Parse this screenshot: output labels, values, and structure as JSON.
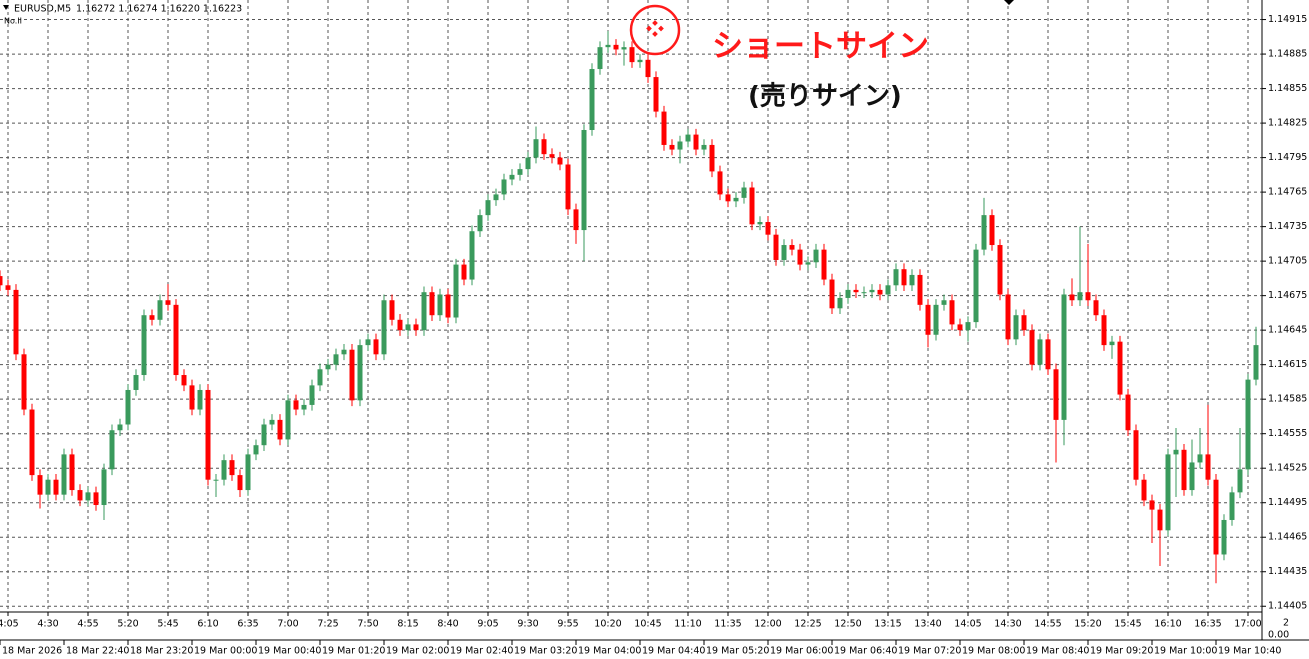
{
  "chart_data": {
    "type": "candlestick",
    "title": "EURUSD,M5",
    "quote": "1.16272 1.16274 1.16220 1.16223",
    "subtitle": "No.II",
    "annotations": [
      "ショートサイン",
      "(売りサイン)"
    ],
    "up_color": "#3a9a5c",
    "down_color": "#ff0000",
    "grid": true,
    "ylim": [
      1.144,
      1.14932
    ],
    "yticks": [
      1.14915,
      1.14885,
      1.14855,
      1.14825,
      1.14795,
      1.14765,
      1.14735,
      1.14705,
      1.14675,
      1.14645,
      1.14615,
      1.14585,
      1.14555,
      1.14525,
      1.14495,
      1.14465,
      1.14435,
      1.14405
    ],
    "categories": [
      null,
      "4:05",
      null,
      null,
      null,
      null,
      "4:30",
      null,
      null,
      null,
      null,
      "4:55",
      null,
      null,
      null,
      null,
      "5:20",
      null,
      null,
      null,
      null,
      "5:45",
      null,
      null,
      null,
      null,
      "6:10",
      null,
      null,
      null,
      null,
      "6:35",
      null,
      null,
      null,
      null,
      "7:00",
      null,
      null,
      null,
      null,
      "7:25",
      null,
      null,
      null,
      null,
      "7:50",
      null,
      null,
      null,
      null,
      "8:15",
      null,
      null,
      null,
      null,
      "8:40",
      null,
      null,
      null,
      null,
      "9:05",
      null,
      null,
      null,
      null,
      "9:30",
      null,
      null,
      null,
      null,
      "9:55",
      null,
      null,
      null,
      null,
      "10:20",
      null,
      null,
      null,
      null,
      "10:45",
      null,
      null,
      null,
      null,
      "11:10",
      null,
      null,
      null,
      null,
      "11:35",
      null,
      null,
      null,
      null,
      "12:00",
      null,
      null,
      null,
      null,
      "12:25",
      null,
      null,
      null,
      null,
      "12:50",
      null,
      null,
      null,
      null,
      "13:15",
      null,
      null,
      null,
      null,
      "13:40",
      null,
      null,
      null,
      null,
      "14:05",
      null,
      null,
      null,
      null,
      "14:30",
      null,
      null,
      null,
      null,
      "14:55",
      null,
      null,
      null,
      null,
      "15:20",
      null,
      null,
      null,
      null,
      "15:45",
      null,
      null,
      null,
      null,
      "16:10",
      null,
      null,
      null,
      null,
      "16:35",
      null,
      null,
      null,
      null,
      "17:00",
      null
    ],
    "open": [
      1.14692,
      1.14684,
      1.1468,
      1.14624,
      1.14576,
      1.14519,
      1.14502,
      1.14515,
      1.14502,
      1.14537,
      1.14506,
      1.14497,
      1.14504,
      1.14493,
      1.14524,
      1.14558,
      1.14563,
      1.14593,
      1.14606,
      1.14658,
      1.14654,
      1.14671,
      1.14667,
      1.14606,
      1.14597,
      1.14576,
      1.14593,
      1.14515,
      1.14515,
      1.14532,
      1.14519,
      1.14506,
      1.14537,
      1.14545,
      1.14563,
      1.14567,
      1.1455,
      1.14584,
      1.14576,
      1.1458,
      1.14597,
      1.14611,
      1.14615,
      1.14624,
      1.14628,
      1.14584,
      1.14632,
      1.14637,
      1.14624,
      1.14671,
      1.14654,
      1.14645,
      1.1465,
      1.14645,
      1.14678,
      1.14658,
      1.14676,
      1.14656,
      1.14702,
      1.14689,
      1.14731,
      1.14745,
      1.14758,
      1.14763,
      1.14776,
      1.1478,
      1.14785,
      1.14795,
      1.14811,
      1.14798,
      1.14795,
      1.14789,
      1.1475,
      1.14732,
      1.14819,
      1.14872,
      1.14891,
      1.14893,
      1.14889,
      1.14891,
      1.14878,
      1.1488,
      1.14865,
      1.14835,
      1.14806,
      1.14802,
      1.14809,
      1.14815,
      1.14802,
      1.14806,
      1.14783,
      1.14763,
      1.14757,
      1.1476,
      1.14769,
      1.14737,
      1.14739,
      1.14728,
      1.14706,
      1.14719,
      1.14715,
      1.14702,
      1.14704,
      1.14715,
      1.14689,
      1.14664,
      1.14673,
      1.1468,
      1.14678,
      1.14678,
      1.1468,
      1.14676,
      1.14684,
      1.14698,
      1.14684,
      1.14693,
      1.14667,
      1.14641,
      1.14667,
      1.14671,
      1.1465,
      1.14645,
      1.14652,
      1.14715,
      1.14745,
      1.14719,
      1.14676,
      1.14637,
      1.14658,
      1.14645,
      1.14615,
      1.14637,
      1.14611,
      1.14567,
      1.14676,
      1.14671,
      1.14678,
      1.14671,
      1.14658,
      1.14632,
      1.14635,
      1.14589,
      1.14558,
      1.14515,
      1.14497,
      1.14489,
      1.14471,
      1.14537,
      1.14541,
      1.14506,
      1.1453,
      1.14537,
      1.14515,
      1.1445,
      1.1448,
      1.14504,
      1.14524,
      1.14602
    ],
    "high": [
      1.14697,
      1.14689,
      1.14685,
      1.14629,
      1.14581,
      1.14524,
      1.1452,
      1.1452,
      1.14542,
      1.14542,
      1.14511,
      1.14509,
      1.14509,
      1.14529,
      1.14563,
      1.14568,
      1.14598,
      1.14611,
      1.14663,
      1.14663,
      1.14676,
      1.14685,
      1.14672,
      1.14611,
      1.14602,
      1.14598,
      1.14598,
      1.1452,
      1.14537,
      1.14537,
      1.14524,
      1.14542,
      1.1455,
      1.14568,
      1.14572,
      1.14572,
      1.14589,
      1.14589,
      1.14585,
      1.14602,
      1.14616,
      1.1462,
      1.14629,
      1.14633,
      1.14633,
      1.14637,
      1.14642,
      1.14642,
      1.14676,
      1.14676,
      1.14659,
      1.14655,
      1.14655,
      1.14683,
      1.14683,
      1.14681,
      1.14681,
      1.14707,
      1.14707,
      1.14736,
      1.1475,
      1.14763,
      1.14768,
      1.14781,
      1.14785,
      1.1479,
      1.148,
      1.14822,
      1.14816,
      1.14803,
      1.148,
      1.14794,
      1.14755,
      1.14824,
      1.14877,
      1.14896,
      1.14905,
      1.14898,
      1.14896,
      1.14896,
      1.14885,
      1.14885,
      1.1487,
      1.1484,
      1.14811,
      1.14814,
      1.1482,
      1.1482,
      1.14811,
      1.14811,
      1.14788,
      1.14768,
      1.14765,
      1.14774,
      1.14774,
      1.14744,
      1.14744,
      1.14733,
      1.14724,
      1.14724,
      1.1472,
      1.14709,
      1.1472,
      1.1472,
      1.14694,
      1.14678,
      1.14685,
      1.14685,
      1.14683,
      1.14685,
      1.14685,
      1.14689,
      1.14703,
      1.14703,
      1.14698,
      1.14698,
      1.14672,
      1.14672,
      1.14676,
      1.14676,
      1.14655,
      1.14657,
      1.1472,
      1.1476,
      1.1475,
      1.14724,
      1.14681,
      1.14663,
      1.14663,
      1.1465,
      1.14642,
      1.14642,
      1.14616,
      1.14681,
      1.1469,
      1.14735,
      1.1472,
      1.14676,
      1.14663,
      1.1464,
      1.1464,
      1.14594,
      1.14563,
      1.1452,
      1.14502,
      1.14494,
      1.14542,
      1.1456,
      1.14546,
      1.1455,
      1.1456,
      1.1458,
      1.1452,
      1.14485,
      1.14509,
      1.1456,
      1.14607,
      1.14648
    ],
    "low": [
      1.14679,
      1.14675,
      1.14619,
      1.14571,
      1.14514,
      1.1449,
      1.14497,
      1.14497,
      1.14497,
      1.14501,
      1.14492,
      1.14492,
      1.14488,
      1.1448,
      1.14519,
      1.14553,
      1.14558,
      1.14588,
      1.14601,
      1.14649,
      1.14649,
      1.14662,
      1.14601,
      1.14592,
      1.14571,
      1.14571,
      1.1451,
      1.145,
      1.1451,
      1.14514,
      1.145,
      1.14501,
      1.14532,
      1.1454,
      1.14558,
      1.14545,
      1.14545,
      1.14571,
      1.14571,
      1.14575,
      1.14592,
      1.14606,
      1.1461,
      1.14619,
      1.14579,
      1.14579,
      1.14627,
      1.14619,
      1.14619,
      1.14649,
      1.1464,
      1.1464,
      1.1464,
      1.1464,
      1.14653,
      1.14653,
      1.14651,
      1.14651,
      1.14684,
      1.14684,
      1.14726,
      1.1474,
      1.14753,
      1.14758,
      1.14771,
      1.14775,
      1.1478,
      1.1479,
      1.14793,
      1.1479,
      1.14784,
      1.14745,
      1.1472,
      1.14705,
      1.14814,
      1.14867,
      1.14886,
      1.14884,
      1.14875,
      1.14873,
      1.14873,
      1.1486,
      1.1483,
      1.14801,
      1.14797,
      1.1479,
      1.14804,
      1.14797,
      1.14797,
      1.14778,
      1.14758,
      1.14752,
      1.14752,
      1.14755,
      1.14732,
      1.14732,
      1.14723,
      1.14701,
      1.14701,
      1.1471,
      1.14697,
      1.14697,
      1.14699,
      1.14684,
      1.14659,
      1.14659,
      1.14668,
      1.14673,
      1.14673,
      1.14673,
      1.14671,
      1.14671,
      1.14679,
      1.14679,
      1.14679,
      1.14662,
      1.1463,
      1.14636,
      1.14662,
      1.14645,
      1.1464,
      1.14635,
      1.14647,
      1.1471,
      1.14714,
      1.14671,
      1.14632,
      1.14632,
      1.1464,
      1.1461,
      1.1461,
      1.14606,
      1.1453,
      1.14545,
      1.14666,
      1.14666,
      1.14666,
      1.14653,
      1.14627,
      1.1462,
      1.14584,
      1.14553,
      1.1451,
      1.14492,
      1.1446,
      1.1444,
      1.14466,
      1.145,
      1.14501,
      1.14501,
      1.14525,
      1.1451,
      1.14425,
      1.14445,
      1.14475,
      1.14499,
      1.14519,
      1.14597
    ],
    "close": [
      1.14684,
      1.1468,
      1.14624,
      1.14576,
      1.14519,
      1.14502,
      1.14515,
      1.14502,
      1.14537,
      1.14506,
      1.14497,
      1.14504,
      1.14493,
      1.14524,
      1.14558,
      1.14563,
      1.14593,
      1.14606,
      1.14658,
      1.14654,
      1.14671,
      1.14667,
      1.14606,
      1.14597,
      1.14576,
      1.14593,
      1.14515,
      1.14515,
      1.14532,
      1.14519,
      1.14506,
      1.14537,
      1.14545,
      1.14563,
      1.14567,
      1.1455,
      1.14584,
      1.14576,
      1.1458,
      1.14597,
      1.14611,
      1.14615,
      1.14624,
      1.14628,
      1.14584,
      1.14632,
      1.14637,
      1.14624,
      1.14671,
      1.14654,
      1.14645,
      1.1465,
      1.14645,
      1.14678,
      1.14658,
      1.14676,
      1.14656,
      1.14702,
      1.14689,
      1.14731,
      1.14745,
      1.14758,
      1.14763,
      1.14776,
      1.1478,
      1.14785,
      1.14795,
      1.14811,
      1.14798,
      1.14795,
      1.14789,
      1.1475,
      1.14732,
      1.14819,
      1.14872,
      1.14891,
      1.14893,
      1.14889,
      1.14891,
      1.14878,
      1.1488,
      1.14865,
      1.14835,
      1.14806,
      1.14802,
      1.14809,
      1.14815,
      1.14802,
      1.14806,
      1.14783,
      1.14763,
      1.14757,
      1.1476,
      1.14769,
      1.14737,
      1.14739,
      1.14728,
      1.14706,
      1.14719,
      1.14715,
      1.14702,
      1.14704,
      1.14715,
      1.14689,
      1.14664,
      1.14673,
      1.1468,
      1.14678,
      1.14678,
      1.1468,
      1.14676,
      1.14684,
      1.14698,
      1.14684,
      1.14693,
      1.14667,
      1.14641,
      1.14667,
      1.14671,
      1.1465,
      1.14645,
      1.14652,
      1.14715,
      1.14745,
      1.14719,
      1.14676,
      1.14637,
      1.14658,
      1.14645,
      1.14615,
      1.14637,
      1.14611,
      1.14567,
      1.14676,
      1.14671,
      1.14678,
      1.14671,
      1.14658,
      1.14632,
      1.14635,
      1.14589,
      1.14558,
      1.14515,
      1.14497,
      1.14489,
      1.14471,
      1.14537,
      1.14541,
      1.14506,
      1.1453,
      1.14537,
      1.14515,
      1.1445,
      1.1448,
      1.14504,
      1.14524,
      1.14602,
      1.14632
    ],
    "date_labels": [
      "18 Mar 2026",
      "18 Mar 22:40",
      "18 Mar 23:20",
      "19 Mar 00:00",
      "19 Mar 00:40",
      "19 Mar 01:20",
      "19 Mar 02:00",
      "19 Mar 02:40",
      "19 Mar 03:20",
      "19 Mar 04:00",
      "19 Mar 04:40",
      "19 Mar 05:20",
      "19 Mar 06:00",
      "19 Mar 06:40",
      "19 Mar 07:20",
      "19 Mar 08:00",
      "19 Mar 08:40",
      "19 Mar 09:20",
      "19 Mar 10:00",
      "19 Mar 10:40"
    ],
    "corner_labels": [
      "2",
      "0.00"
    ]
  }
}
